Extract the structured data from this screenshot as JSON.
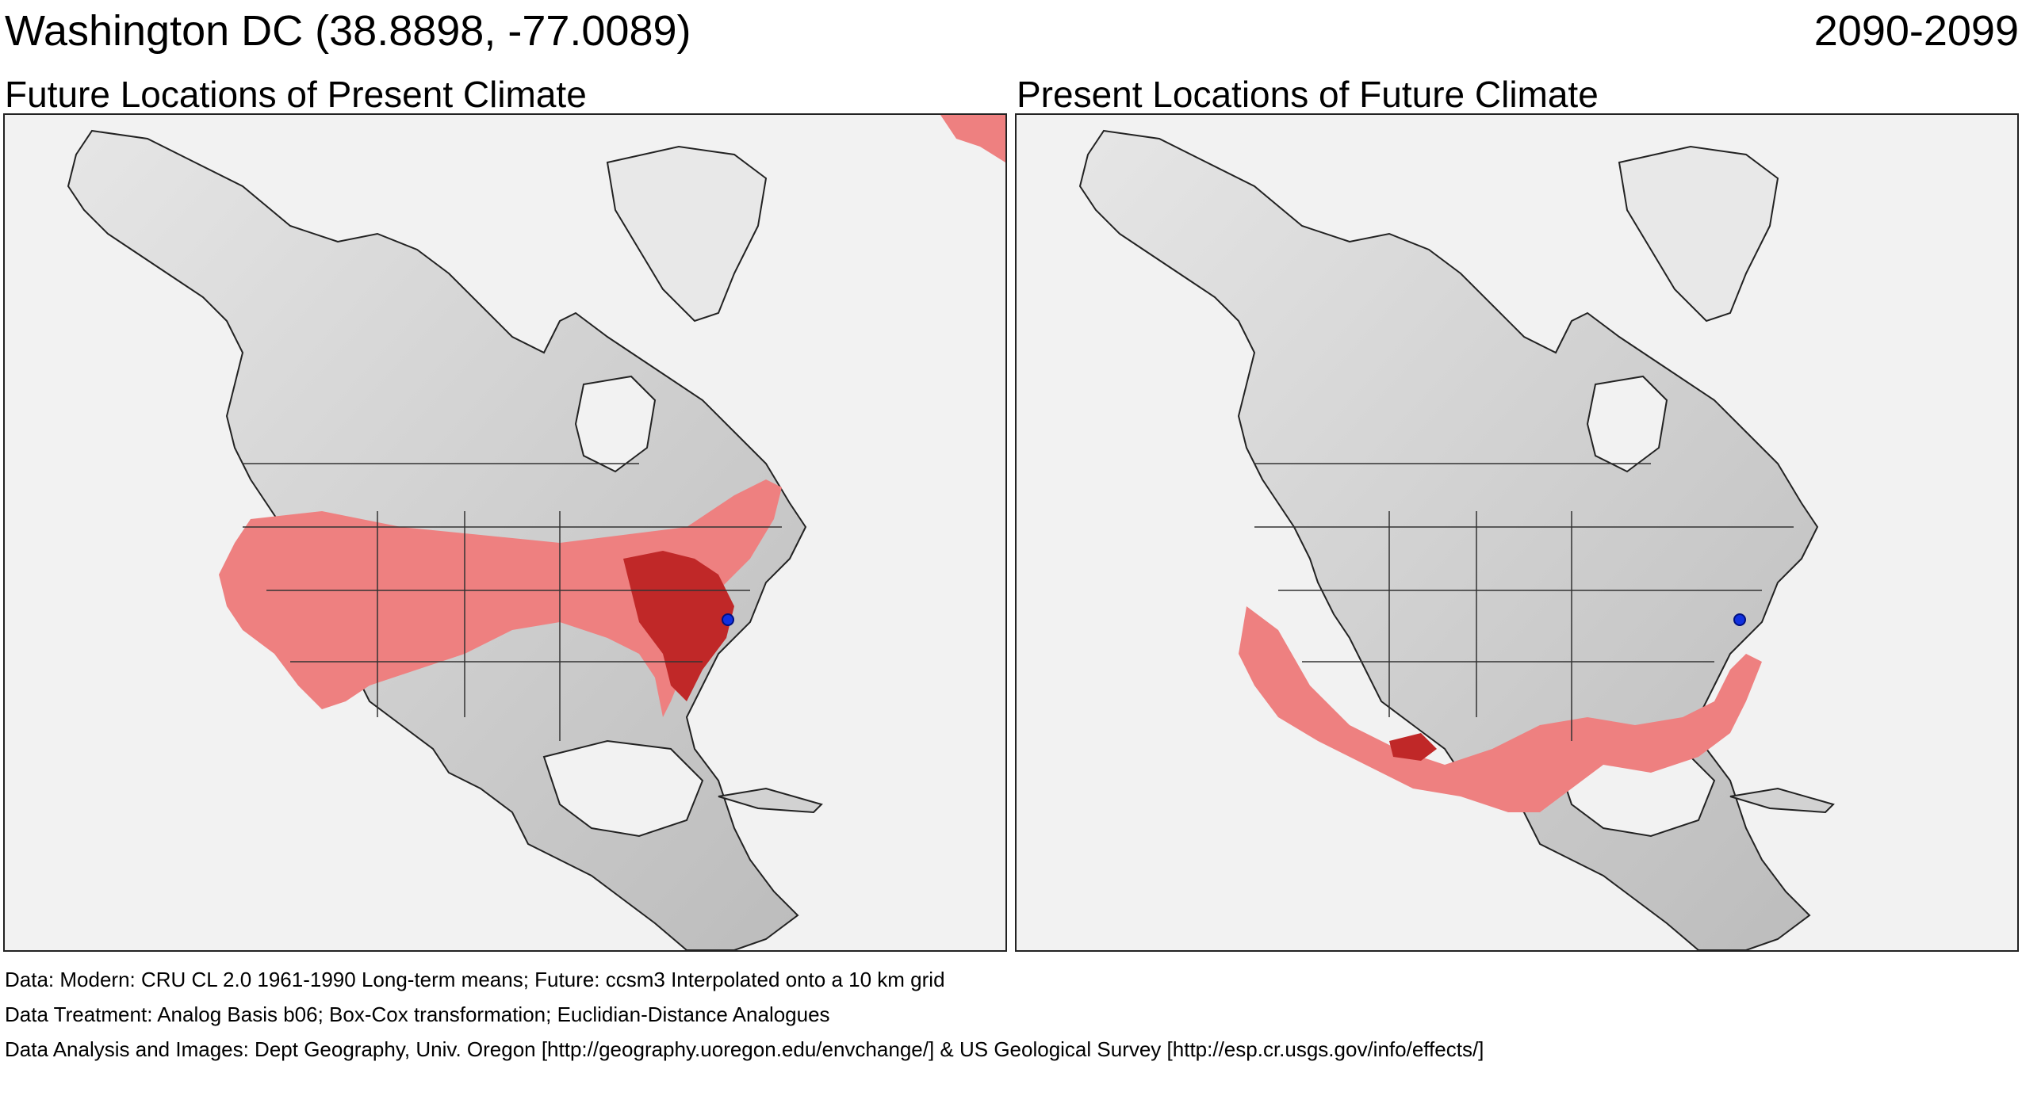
{
  "header": {
    "location": "Washington DC  (38.8898, -77.0089)",
    "period": "2090-2099"
  },
  "panels": [
    {
      "title": "Future Locations of Present Climate"
    },
    {
      "title": "Present Locations of Future Climate"
    }
  ],
  "footer": {
    "data_line": "Data:  Modern: CRU CL 2.0 1961-1990 Long-term means; Future: ccsm3 Interpolated onto a 10 km grid",
    "treatment_line": "Data Treatment:  Analog Basis b06; Box-Cox transformation; Euclidian-Distance Analogues",
    "analysis_line": "Data Analysis and Images:  Dept Geography, Univ. Oregon [http://geography.uoregon.edu/envchange/] & US Geological Survey [http://esp.cr.usgs.gov/info/effects/]"
  },
  "colors": {
    "analog_light": "#ee8080",
    "analog_dark": "#c02828",
    "land": "#d2d2d2",
    "ocean": "#f2f2f2",
    "marker": "#1030e0"
  }
}
